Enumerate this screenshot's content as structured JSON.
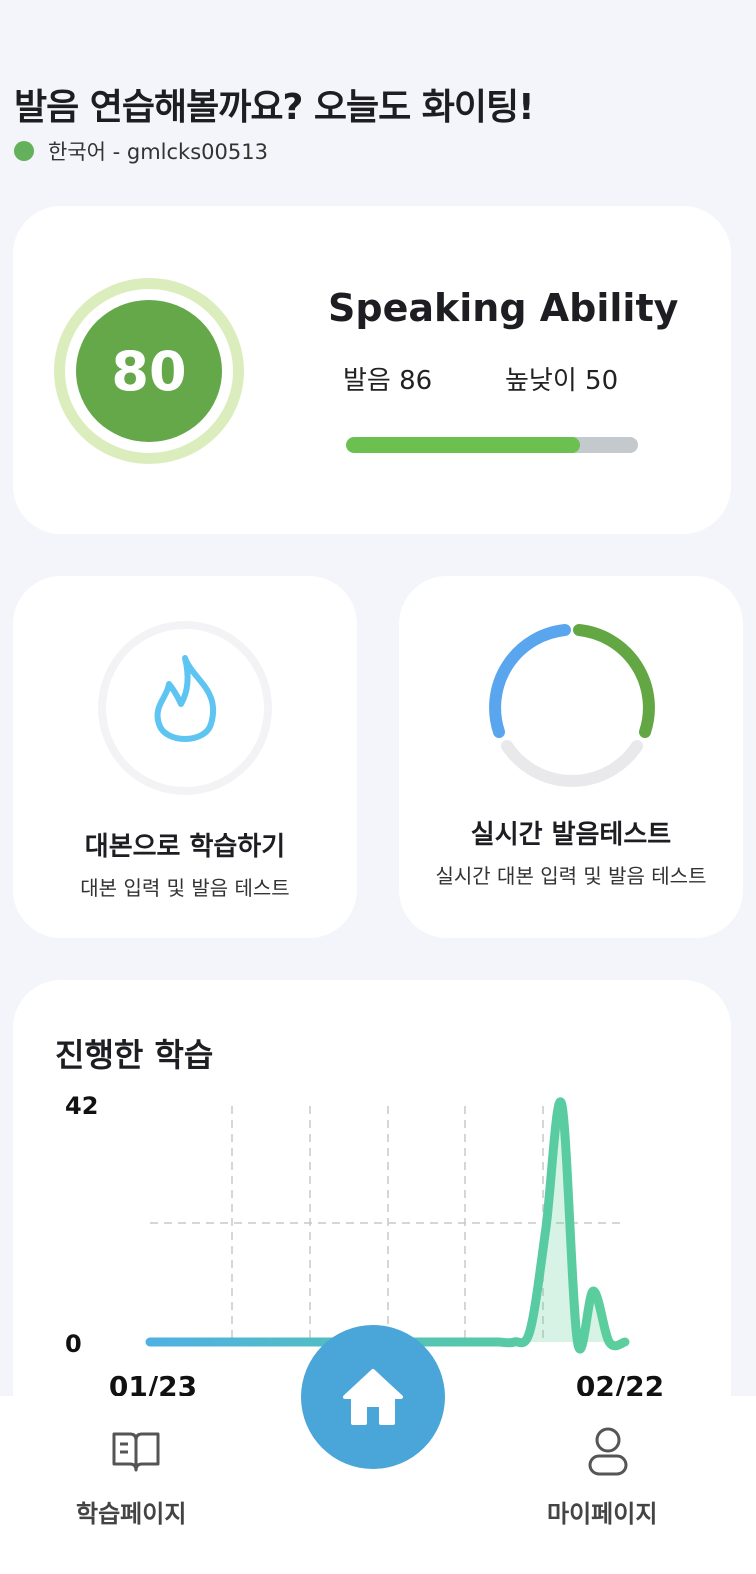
{
  "header": {
    "title": "발음 연습해볼까요? 오늘도 화이팅!",
    "language_user": "한국어 - gmlcks00513",
    "status_color": "#63b15a"
  },
  "speaking": {
    "score": "80",
    "title": "Speaking Ability",
    "pronunciation": "발음 86",
    "pitch": "높낮이 50",
    "progress": 0.8
  },
  "cards": [
    {
      "title": "대본으로 학습하기",
      "subtitle": "대본 입력 및 발음 테스트",
      "icon": "flame-icon"
    },
    {
      "title": "실시간 발음테스트",
      "subtitle": "실시간 대본 입력 및 발음 테스트",
      "icon": "ring-chart-icon"
    }
  ],
  "progress_section": {
    "title": "진행한 학습"
  },
  "chart_data": {
    "type": "area",
    "ylim": [
      0,
      42
    ],
    "y_ticks": [
      "42",
      "0"
    ],
    "x_ticks": [
      "01/23",
      "02/22"
    ],
    "x_days": [
      0,
      1,
      2,
      3,
      4,
      5,
      6,
      7,
      8,
      9,
      10,
      11,
      12,
      13,
      14,
      15,
      16,
      17,
      18,
      19,
      20,
      21,
      22,
      23,
      24,
      25,
      26,
      27,
      28,
      29,
      30
    ],
    "values": [
      0,
      0,
      0,
      0,
      0,
      0,
      0,
      0,
      0,
      0,
      0,
      0,
      0,
      0,
      0,
      0,
      0,
      0,
      0,
      0,
      0,
      0,
      0,
      0,
      2,
      20,
      42,
      0,
      9,
      0,
      0
    ],
    "grid": true
  },
  "nav": {
    "left": "학습페이지",
    "right": "마이페이지",
    "home_icon": "home-icon"
  }
}
